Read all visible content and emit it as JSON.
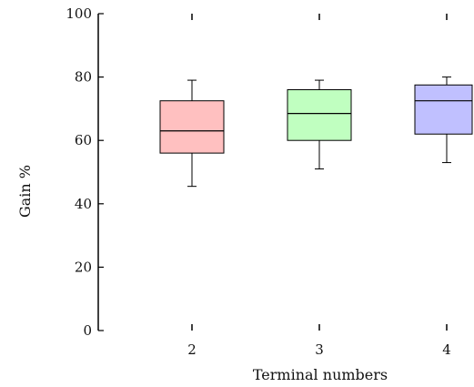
{
  "chart_data": {
    "type": "box",
    "xlabel": "Terminal numbers",
    "ylabel": "Gain %",
    "ylim": [
      0,
      100
    ],
    "yticks": [
      0,
      20,
      40,
      60,
      80,
      100
    ],
    "categories": [
      "2",
      "3",
      "4"
    ],
    "boxes": [
      {
        "category": "2",
        "whisker_low": 45.5,
        "q1": 56,
        "median": 63,
        "q3": 72.5,
        "whisker_high": 79,
        "color": "#ffc0c0"
      },
      {
        "category": "3",
        "whisker_low": 51,
        "q1": 60,
        "median": 68.5,
        "q3": 76,
        "whisker_high": 79,
        "color": "#c0ffc0"
      },
      {
        "category": "4",
        "whisker_low": 53,
        "q1": 62,
        "median": 72.5,
        "q3": 77.5,
        "whisker_high": 80,
        "color": "#c0c0ff"
      }
    ],
    "grid": false,
    "legend": "none"
  }
}
